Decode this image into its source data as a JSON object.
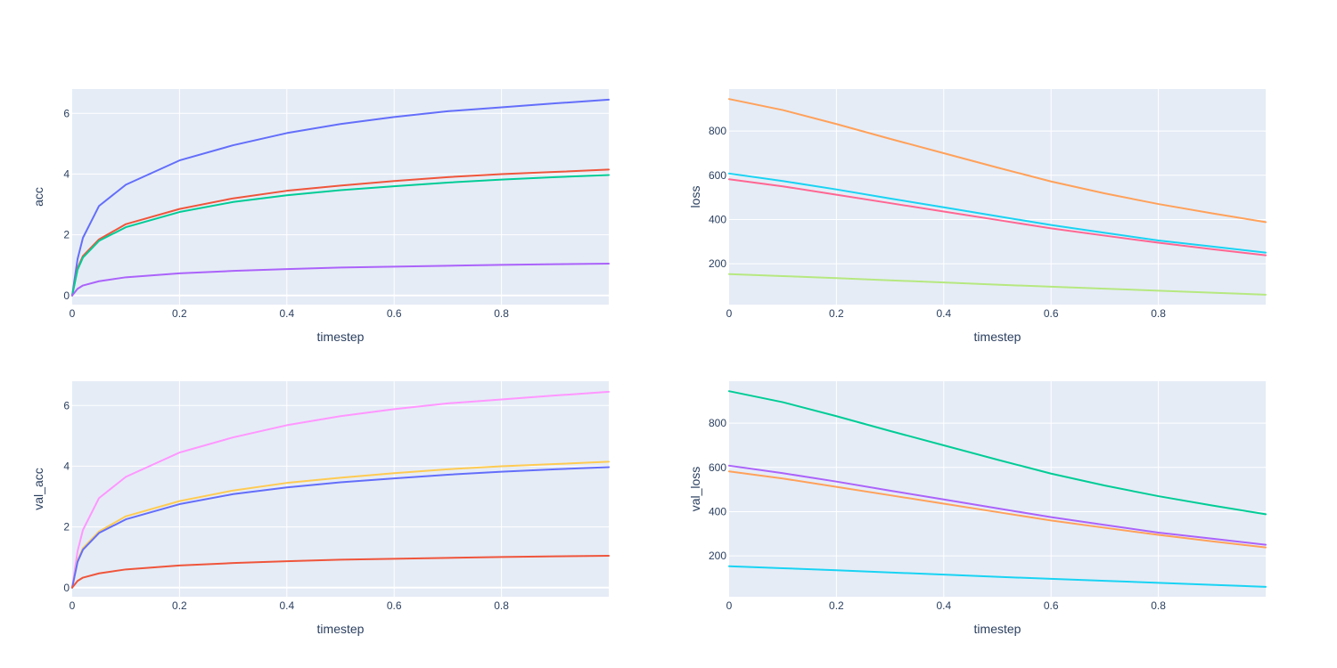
{
  "chart_data": [
    {
      "type": "line",
      "xlabel": "timestep",
      "ylabel": "acc",
      "xlim": [
        0,
        1
      ],
      "ylim": [
        -0.3,
        6.8
      ],
      "x_ticks": [
        "0",
        "0.2",
        "0.4",
        "0.6",
        "0.8"
      ],
      "y_ticks": [
        "0",
        "2",
        "4",
        "6"
      ],
      "y_tick_values": [
        0,
        2,
        4,
        6
      ],
      "grid": true,
      "series": [
        {
          "color": "#636efa",
          "x": [
            0,
            0.01,
            0.02,
            0.05,
            0.1,
            0.2,
            0.3,
            0.4,
            0.5,
            0.6,
            0.7,
            0.8,
            0.9,
            1.0
          ],
          "values": [
            0,
            1.2,
            1.9,
            2.95,
            3.65,
            4.45,
            4.95,
            5.35,
            5.65,
            5.88,
            6.07,
            6.2,
            6.33,
            6.45
          ]
        },
        {
          "color": "#ef553b",
          "x": [
            0,
            0.01,
            0.02,
            0.05,
            0.1,
            0.2,
            0.3,
            0.4,
            0.5,
            0.6,
            0.7,
            0.8,
            0.9,
            1.0
          ],
          "values": [
            0,
            0.9,
            1.3,
            1.85,
            2.35,
            2.85,
            3.2,
            3.45,
            3.62,
            3.77,
            3.9,
            4.0,
            4.07,
            4.15
          ]
        },
        {
          "color": "#00cc96",
          "x": [
            0,
            0.01,
            0.02,
            0.05,
            0.1,
            0.2,
            0.3,
            0.4,
            0.5,
            0.6,
            0.7,
            0.8,
            0.9,
            1.0
          ],
          "values": [
            0,
            0.85,
            1.25,
            1.8,
            2.25,
            2.75,
            3.08,
            3.3,
            3.47,
            3.6,
            3.72,
            3.82,
            3.9,
            3.97
          ]
        },
        {
          "color": "#ab63fa",
          "x": [
            0,
            0.01,
            0.02,
            0.05,
            0.1,
            0.2,
            0.3,
            0.4,
            0.5,
            0.6,
            0.7,
            0.8,
            0.9,
            1.0
          ],
          "values": [
            0,
            0.22,
            0.33,
            0.47,
            0.6,
            0.73,
            0.81,
            0.87,
            0.92,
            0.95,
            0.98,
            1.01,
            1.03,
            1.05
          ]
        }
      ]
    },
    {
      "type": "line",
      "xlabel": "timestep",
      "ylabel": "loss",
      "xlim": [
        0,
        1
      ],
      "ylim": [
        15,
        990
      ],
      "x_ticks": [
        "0",
        "0.2",
        "0.4",
        "0.6",
        "0.8"
      ],
      "y_ticks": [
        "200",
        "400",
        "600",
        "800"
      ],
      "y_tick_values": [
        200,
        400,
        600,
        800
      ],
      "grid": true,
      "series": [
        {
          "color": "#ffa15a",
          "x": [
            0,
            0.1,
            0.2,
            0.3,
            0.4,
            0.5,
            0.6,
            0.7,
            0.8,
            0.9,
            1.0
          ],
          "values": [
            945,
            895,
            832,
            765,
            700,
            635,
            572,
            518,
            470,
            428,
            388
          ]
        },
        {
          "color": "#19d3f3",
          "x": [
            0,
            0.1,
            0.2,
            0.3,
            0.4,
            0.5,
            0.6,
            0.7,
            0.8,
            0.9,
            1.0
          ],
          "values": [
            608,
            574,
            536,
            495,
            455,
            415,
            375,
            340,
            305,
            278,
            250
          ]
        },
        {
          "color": "#ff6692",
          "x": [
            0,
            0.1,
            0.2,
            0.3,
            0.4,
            0.5,
            0.6,
            0.7,
            0.8,
            0.9,
            1.0
          ],
          "values": [
            582,
            550,
            512,
            474,
            436,
            398,
            360,
            327,
            295,
            266,
            238
          ]
        },
        {
          "color": "#b6e880",
          "x": [
            0,
            0.1,
            0.2,
            0.3,
            0.4,
            0.5,
            0.6,
            0.7,
            0.8,
            0.9,
            1.0
          ],
          "values": [
            153,
            144,
            135,
            125,
            115,
            105,
            96,
            87,
            78,
            69,
            60
          ]
        }
      ]
    },
    {
      "type": "line",
      "xlabel": "timestep",
      "ylabel": "val_acc",
      "xlim": [
        0,
        1
      ],
      "ylim": [
        -0.3,
        6.8
      ],
      "x_ticks": [
        "0",
        "0.2",
        "0.4",
        "0.6",
        "0.8"
      ],
      "y_ticks": [
        "0",
        "2",
        "4",
        "6"
      ],
      "y_tick_values": [
        0,
        2,
        4,
        6
      ],
      "grid": true,
      "series": [
        {
          "color": "#ff97ff",
          "x": [
            0,
            0.01,
            0.02,
            0.05,
            0.1,
            0.2,
            0.3,
            0.4,
            0.5,
            0.6,
            0.7,
            0.8,
            0.9,
            1.0
          ],
          "values": [
            0,
            1.2,
            1.9,
            2.95,
            3.65,
            4.45,
            4.95,
            5.35,
            5.65,
            5.88,
            6.07,
            6.2,
            6.33,
            6.45
          ]
        },
        {
          "color": "#fecb52",
          "x": [
            0,
            0.01,
            0.02,
            0.05,
            0.1,
            0.2,
            0.3,
            0.4,
            0.5,
            0.6,
            0.7,
            0.8,
            0.9,
            1.0
          ],
          "values": [
            0,
            0.9,
            1.3,
            1.85,
            2.35,
            2.85,
            3.2,
            3.45,
            3.62,
            3.77,
            3.9,
            4.0,
            4.07,
            4.15
          ]
        },
        {
          "color": "#636efa",
          "x": [
            0,
            0.01,
            0.02,
            0.05,
            0.1,
            0.2,
            0.3,
            0.4,
            0.5,
            0.6,
            0.7,
            0.8,
            0.9,
            1.0
          ],
          "values": [
            0,
            0.85,
            1.25,
            1.8,
            2.25,
            2.75,
            3.08,
            3.3,
            3.47,
            3.6,
            3.72,
            3.82,
            3.9,
            3.97
          ]
        },
        {
          "color": "#ef553b",
          "x": [
            0,
            0.01,
            0.02,
            0.05,
            0.1,
            0.2,
            0.3,
            0.4,
            0.5,
            0.6,
            0.7,
            0.8,
            0.9,
            1.0
          ],
          "values": [
            0,
            0.22,
            0.33,
            0.47,
            0.6,
            0.73,
            0.81,
            0.87,
            0.92,
            0.95,
            0.98,
            1.01,
            1.03,
            1.05
          ]
        }
      ]
    },
    {
      "type": "line",
      "xlabel": "timestep",
      "ylabel": "val_loss",
      "xlim": [
        0,
        1
      ],
      "ylim": [
        15,
        990
      ],
      "x_ticks": [
        "0",
        "0.2",
        "0.4",
        "0.6",
        "0.8"
      ],
      "y_ticks": [
        "200",
        "400",
        "600",
        "800"
      ],
      "y_tick_values": [
        200,
        400,
        600,
        800
      ],
      "grid": true,
      "series": [
        {
          "color": "#00cc96",
          "x": [
            0,
            0.1,
            0.2,
            0.3,
            0.4,
            0.5,
            0.6,
            0.7,
            0.8,
            0.9,
            1.0
          ],
          "values": [
            945,
            895,
            832,
            765,
            700,
            635,
            572,
            518,
            470,
            428,
            388
          ]
        },
        {
          "color": "#ab63fa",
          "x": [
            0,
            0.1,
            0.2,
            0.3,
            0.4,
            0.5,
            0.6,
            0.7,
            0.8,
            0.9,
            1.0
          ],
          "values": [
            608,
            574,
            536,
            495,
            455,
            415,
            375,
            340,
            305,
            278,
            250
          ]
        },
        {
          "color": "#ffa15a",
          "x": [
            0,
            0.1,
            0.2,
            0.3,
            0.4,
            0.5,
            0.6,
            0.7,
            0.8,
            0.9,
            1.0
          ],
          "values": [
            582,
            550,
            512,
            474,
            436,
            398,
            360,
            327,
            295,
            266,
            238
          ]
        },
        {
          "color": "#19d3f3",
          "x": [
            0,
            0.1,
            0.2,
            0.3,
            0.4,
            0.5,
            0.6,
            0.7,
            0.8,
            0.9,
            1.0
          ],
          "values": [
            153,
            144,
            135,
            125,
            115,
            105,
            96,
            87,
            78,
            69,
            60
          ]
        }
      ]
    }
  ]
}
